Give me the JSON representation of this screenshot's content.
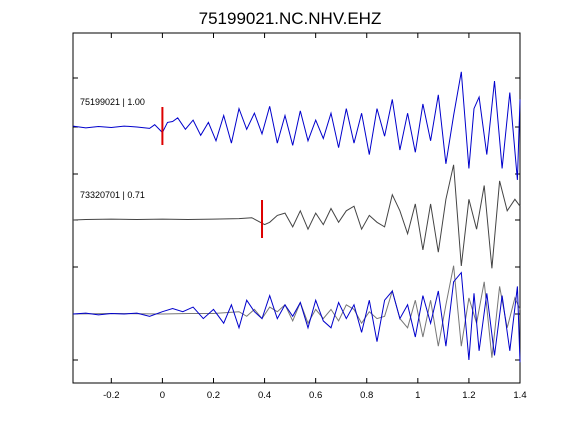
{
  "chart_data": {
    "type": "line",
    "title": "75199021.NC.NHV.EHZ",
    "xlabel": "",
    "ylabel": "",
    "xlim": [
      -0.35,
      1.4
    ],
    "xticks": [
      -0.2,
      0,
      0.2,
      0.4,
      0.6,
      0.8,
      1,
      1.2,
      1.4
    ],
    "xtick_labels": [
      "-0.2",
      "0",
      "0.2",
      "0.4",
      "0.6",
      "0.8",
      "1",
      "1.2",
      "1.4"
    ],
    "grid": false,
    "colors": {
      "master": "#0000cc",
      "slave": "#444444",
      "overlay_slave": "#777777",
      "pick": "#dd0000"
    },
    "traces": [
      {
        "label": "75199021 | 1.00",
        "pick_time": 0.0,
        "x": [
          -0.35,
          -0.3,
          -0.25,
          -0.2,
          -0.15,
          -0.1,
          -0.05,
          -0.03,
          0,
          0.02,
          0.04,
          0.06,
          0.09,
          0.12,
          0.15,
          0.18,
          0.21,
          0.24,
          0.27,
          0.3,
          0.33,
          0.36,
          0.39,
          0.42,
          0.45,
          0.48,
          0.51,
          0.54,
          0.57,
          0.6,
          0.63,
          0.66,
          0.69,
          0.72,
          0.75,
          0.78,
          0.81,
          0.84,
          0.87,
          0.9,
          0.93,
          0.96,
          0.99,
          1.02,
          1.05,
          1.08,
          1.11,
          1.14,
          1.17,
          1.2,
          1.22,
          1.24,
          1.27,
          1.3,
          1.33,
          1.36,
          1.39,
          1.4
        ],
        "values": [
          0.02,
          -0.02,
          0.01,
          -0.01,
          0.02,
          0,
          -0.03,
          0.05,
          -0.12,
          0.1,
          0.12,
          0.2,
          -0.05,
          0.15,
          -0.18,
          0.1,
          -0.3,
          0.25,
          -0.35,
          0.4,
          -0.05,
          0.3,
          -0.15,
          0.45,
          -0.35,
          0.25,
          -0.4,
          0.35,
          -0.3,
          0.15,
          -0.25,
          0.3,
          -0.45,
          0.4,
          -0.35,
          0.3,
          -0.6,
          0.4,
          -0.2,
          0.6,
          -0.5,
          0.3,
          -0.55,
          0.5,
          -0.3,
          0.7,
          -0.8,
          0.25,
          1.2,
          -0.9,
          0.4,
          0.65,
          -0.6,
          1.0,
          -0.9,
          0.75,
          -1.15,
          0.6
        ]
      },
      {
        "label": "73320701 | 0.71",
        "pick_time": 0.39,
        "x": [
          -0.35,
          -0.3,
          -0.2,
          -0.1,
          0,
          0.1,
          0.2,
          0.3,
          0.35,
          0.4,
          0.42,
          0.45,
          0.48,
          0.51,
          0.54,
          0.57,
          0.6,
          0.63,
          0.66,
          0.69,
          0.72,
          0.75,
          0.78,
          0.81,
          0.84,
          0.87,
          0.9,
          0.93,
          0.96,
          0.99,
          1.02,
          1.05,
          1.08,
          1.11,
          1.14,
          1.17,
          1.2,
          1.23,
          1.26,
          1.29,
          1.32,
          1.35,
          1.38,
          1.4
        ],
        "values": [
          0,
          0.01,
          0.02,
          0.01,
          0.02,
          0.01,
          0.02,
          0.03,
          0.05,
          -0.1,
          -0.05,
          0.1,
          0.15,
          -0.15,
          0.2,
          -0.2,
          0.15,
          -0.1,
          0.25,
          -0.05,
          0.2,
          0.3,
          -0.2,
          0.1,
          -0.05,
          -0.15,
          0.55,
          0.2,
          -0.3,
          0.35,
          -0.65,
          0.35,
          -0.7,
          0.45,
          1.2,
          -1.0,
          0.45,
          -0.2,
          0.75,
          -1.05,
          0.85,
          0.2,
          0.45,
          0.3
        ]
      },
      {
        "label": "",
        "overlay": true,
        "master_x": [
          -0.35,
          -0.3,
          -0.25,
          -0.2,
          -0.15,
          -0.1,
          -0.05,
          0,
          0.04,
          0.08,
          0.12,
          0.16,
          0.2,
          0.24,
          0.27,
          0.3,
          0.33,
          0.36,
          0.39,
          0.42,
          0.45,
          0.48,
          0.51,
          0.54,
          0.57,
          0.6,
          0.63,
          0.66,
          0.69,
          0.72,
          0.75,
          0.78,
          0.81,
          0.84,
          0.87,
          0.9,
          0.93,
          0.96,
          0.99,
          1.02,
          1.05,
          1.08,
          1.11,
          1.14,
          1.17,
          1.2,
          1.22,
          1.24,
          1.27,
          1.3,
          1.33,
          1.36,
          1.39,
          1.4
        ],
        "master_values": [
          0,
          0.02,
          -0.02,
          0.01,
          0,
          0.02,
          -0.05,
          0.05,
          0.12,
          0.05,
          0.15,
          -0.1,
          0.1,
          -0.2,
          0.2,
          -0.3,
          0.3,
          0.05,
          -0.1,
          0.4,
          -0.1,
          0.2,
          -0.05,
          0.25,
          -0.3,
          0.3,
          -0.15,
          -0.3,
          0.25,
          -0.1,
          0.2,
          -0.4,
          0.3,
          -0.6,
          0.3,
          0.5,
          -0.1,
          0.2,
          -0.5,
          0.4,
          -0.2,
          0.5,
          -0.7,
          0.7,
          0.9,
          -1.0,
          0.45,
          -0.8,
          0.45,
          -0.9,
          0.4,
          -0.8,
          0.6,
          -1.05
        ],
        "slave_x": [
          -0.35,
          -0.2,
          0,
          0.1,
          0.2,
          0.3,
          0.33,
          0.36,
          0.39,
          0.42,
          0.45,
          0.48,
          0.51,
          0.54,
          0.57,
          0.6,
          0.63,
          0.66,
          0.69,
          0.72,
          0.75,
          0.78,
          0.81,
          0.84,
          0.87,
          0.9,
          0.93,
          0.96,
          0.99,
          1.02,
          1.05,
          1.08,
          1.11,
          1.14,
          1.17,
          1.2,
          1.23,
          1.26,
          1.29,
          1.32,
          1.35,
          1.38,
          1.4
        ],
        "slave_values": [
          0,
          0.01,
          0,
          0.01,
          0.01,
          0.05,
          -0.05,
          0.1,
          -0.1,
          0.15,
          0.05,
          0.2,
          -0.15,
          0.25,
          -0.2,
          0.1,
          -0.1,
          0.1,
          -0.15,
          0.2,
          0.1,
          -0.2,
          0.05,
          -0.1,
          -0.05,
          0.5,
          -0.1,
          -0.3,
          0.3,
          -0.5,
          0.3,
          -0.7,
          0.2,
          1.05,
          -0.7,
          0.35,
          -0.2,
          0.7,
          -0.95,
          0.6,
          -0.3,
          0.35,
          0.1
        ]
      }
    ]
  }
}
